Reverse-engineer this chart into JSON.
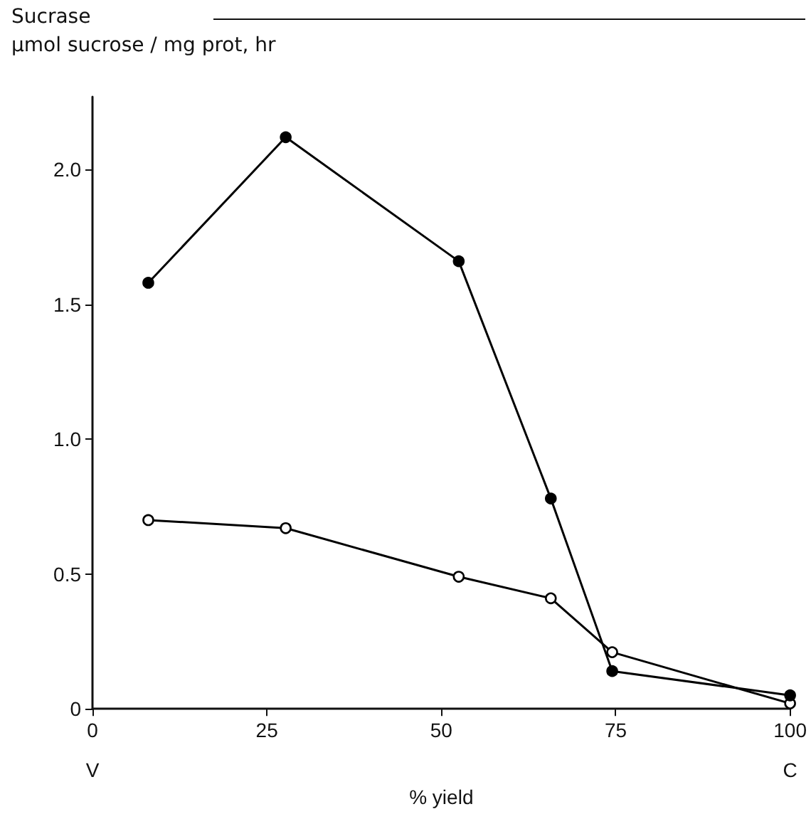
{
  "chart_data": {
    "type": "line",
    "title": "Sucrase",
    "ylabel": "µmol sucrose / mg prot, hr",
    "xlabel": "% yield",
    "x": [
      8,
      27.7,
      52.5,
      65.7,
      74.5,
      100
    ],
    "series": [
      {
        "color": "#000000",
        "values": [
          1.58,
          2.12,
          1.66,
          0.78,
          0.14,
          0.05
        ]
      },
      {
        "color": "#000000",
        "values": [
          0.7,
          0.67,
          0.49,
          0.41,
          0.21,
          0.02
        ]
      }
    ],
    "xlim": [
      0,
      100
    ],
    "xticks": [
      0,
      25,
      50,
      75,
      100
    ],
    "ylim": [
      0,
      2.27
    ],
    "yticks": [
      0,
      {
        "value": 0.5,
        "label": "0.5"
      },
      {
        "value": 1,
        "label": "1.0"
      },
      {
        "value": 1.5,
        "label": "1.5"
      },
      {
        "value": 2,
        "label": "2.0"
      }
    ],
    "annotations": [
      "V",
      "C"
    ],
    "grid": false,
    "marker": "circle",
    "line_style": "solid"
  }
}
